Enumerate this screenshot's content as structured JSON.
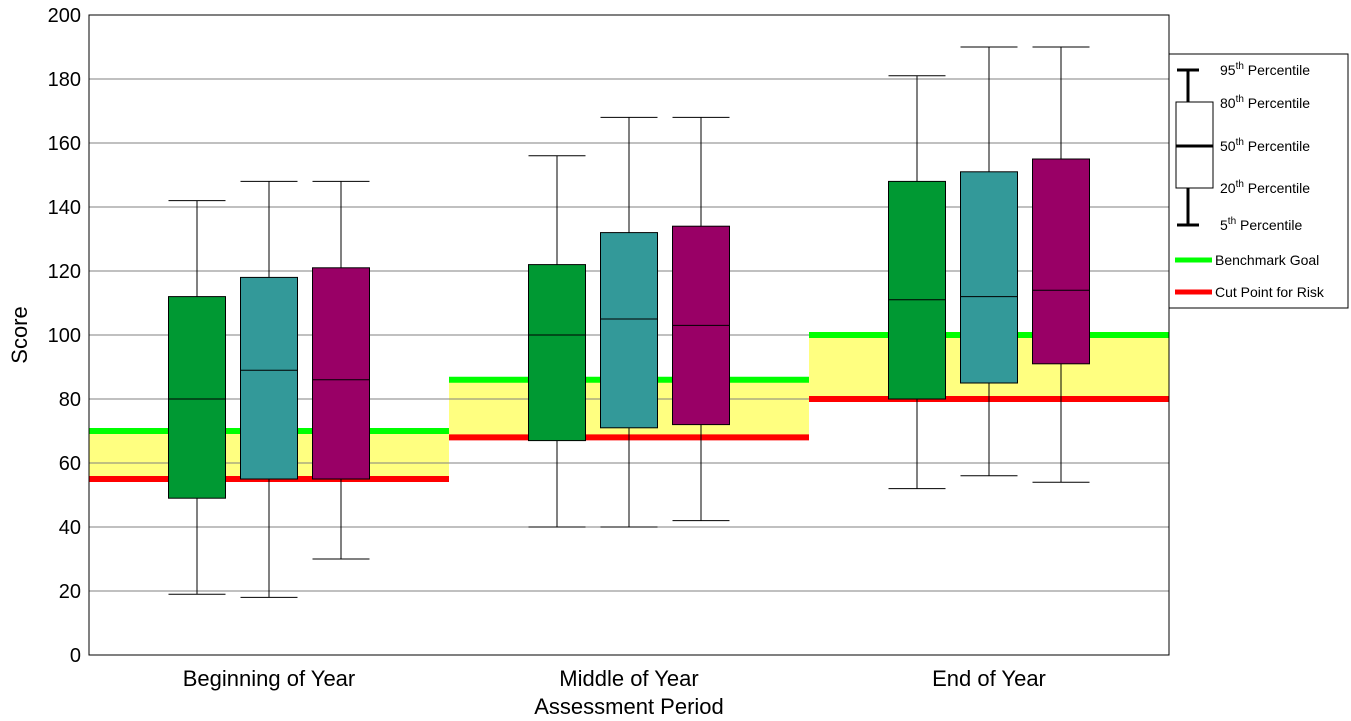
{
  "chart_data": {
    "type": "boxplot",
    "xlabel": "Assessment Period",
    "ylabel": "Score",
    "ylim": [
      0,
      200
    ],
    "yticks": [
      0,
      20,
      40,
      60,
      80,
      100,
      120,
      140,
      160,
      180,
      200
    ],
    "grid": true,
    "legend_position": "right",
    "categories": [
      "Beginning of Year",
      "Middle of Year",
      "End of Year"
    ],
    "series_colors": [
      "#009933",
      "#339999",
      "#990066"
    ],
    "boxes": [
      [
        {
          "p5": 19,
          "p20": 49,
          "p50": 80,
          "p80": 112,
          "p95": 142
        },
        {
          "p5": 18,
          "p20": 55,
          "p50": 89,
          "p80": 118,
          "p95": 148
        },
        {
          "p5": 30,
          "p20": 55,
          "p50": 86,
          "p80": 121,
          "p95": 148
        }
      ],
      [
        {
          "p5": 40,
          "p20": 67,
          "p50": 100,
          "p80": 122,
          "p95": 156
        },
        {
          "p5": 40,
          "p20": 71,
          "p50": 105,
          "p80": 132,
          "p95": 168
        },
        {
          "p5": 42,
          "p20": 72,
          "p50": 103,
          "p80": 134,
          "p95": 168
        }
      ],
      [
        {
          "p5": 52,
          "p20": 80,
          "p50": 111,
          "p80": 148,
          "p95": 181
        },
        {
          "p5": 56,
          "p20": 85,
          "p50": 112,
          "p80": 151,
          "p95": 190
        },
        {
          "p5": 54,
          "p20": 91,
          "p50": 114,
          "p80": 155,
          "p95": 190
        }
      ]
    ],
    "benchmark_goal": [
      70,
      86,
      100
    ],
    "cut_point_for_risk": [
      55,
      68,
      80
    ],
    "benchmark_color": "#00ff00",
    "risk_color": "#ff0000",
    "band_color": "#ffff80",
    "legend": {
      "p95": {
        "num": "95",
        "sup": "th",
        "text": " Percentile"
      },
      "p80": {
        "num": "80",
        "sup": "th",
        "text": " Percentile"
      },
      "p50": {
        "num": "50",
        "sup": "th",
        "text": " Percentile"
      },
      "p20": {
        "num": "20",
        "sup": "th",
        "text": " Percentile"
      },
      "p5": {
        "num": "5",
        "sup": "th",
        "text": " Percentile"
      },
      "benchmark": "Benchmark Goal",
      "risk": "Cut Point for Risk"
    }
  }
}
